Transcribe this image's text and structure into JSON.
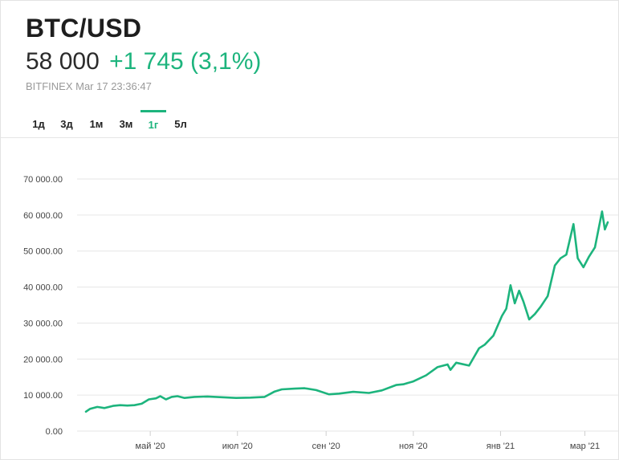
{
  "header": {
    "ticker": "BTC/USD",
    "price": "58 000",
    "change": "+1 745 (3,1%)",
    "source": "BITFINEX Mar 17 23:36:47"
  },
  "tabs": [
    {
      "label": "1д",
      "active": false
    },
    {
      "label": "3д",
      "active": false
    },
    {
      "label": "1м",
      "active": false
    },
    {
      "label": "3м",
      "active": false
    },
    {
      "label": "1г",
      "active": true
    },
    {
      "label": "5л",
      "active": false
    }
  ],
  "colors": {
    "accent": "#1db47d",
    "grid": "#e6e6e6",
    "text": "#222222"
  },
  "chart_data": {
    "type": "line",
    "title": "",
    "xlabel": "",
    "ylabel": "",
    "ylim": [
      0,
      70000
    ],
    "grid": true,
    "yticks": [
      0,
      10000,
      20000,
      30000,
      40000,
      50000,
      60000,
      70000
    ],
    "ytick_labels": [
      "0.00",
      "10 000.00",
      "20 000.00",
      "30 000.00",
      "40 000.00",
      "50 000.00",
      "60 000.00",
      "70 000.00"
    ],
    "xlim": [
      "2020-03-17",
      "2021-03-17"
    ],
    "xticks": [
      {
        "date": "2020-05-01",
        "label": "май '20"
      },
      {
        "date": "2020-07-01",
        "label": "июл '20"
      },
      {
        "date": "2020-09-01",
        "label": "сен '20"
      },
      {
        "date": "2020-11-01",
        "label": "ноя '20"
      },
      {
        "date": "2021-01-01",
        "label": "янв '21"
      },
      {
        "date": "2021-03-01",
        "label": "мар '21"
      }
    ],
    "series": [
      {
        "x": [
          "2020-03-17",
          "2020-03-20",
          "2020-03-25",
          "2020-03-30",
          "2020-04-05",
          "2020-04-10",
          "2020-04-15",
          "2020-04-20",
          "2020-04-25",
          "2020-04-30",
          "2020-05-05",
          "2020-05-08",
          "2020-05-12",
          "2020-05-16",
          "2020-05-20",
          "2020-05-25",
          "2020-06-01",
          "2020-06-10",
          "2020-06-20",
          "2020-06-30",
          "2020-07-10",
          "2020-07-20",
          "2020-07-27",
          "2020-08-01",
          "2020-08-10",
          "2020-08-17",
          "2020-08-25",
          "2020-09-03",
          "2020-09-10",
          "2020-09-20",
          "2020-10-01",
          "2020-10-10",
          "2020-10-20",
          "2020-10-25",
          "2020-11-01",
          "2020-11-10",
          "2020-11-18",
          "2020-11-25",
          "2020-11-27",
          "2020-12-01",
          "2020-12-10",
          "2020-12-17",
          "2020-12-21",
          "2020-12-27",
          "2021-01-02",
          "2021-01-05",
          "2021-01-08",
          "2021-01-11",
          "2021-01-14",
          "2021-01-17",
          "2021-01-21",
          "2021-01-25",
          "2021-01-29",
          "2021-02-03",
          "2021-02-08",
          "2021-02-12",
          "2021-02-16",
          "2021-02-21",
          "2021-02-24",
          "2021-02-28",
          "2021-03-04",
          "2021-03-08",
          "2021-03-13",
          "2021-03-15",
          "2021-03-17"
        ],
        "y": [
          5400,
          6200,
          6700,
          6400,
          7000,
          7200,
          7100,
          7200,
          7600,
          8800,
          9100,
          9700,
          8800,
          9500,
          9700,
          9200,
          9500,
          9600,
          9400,
          9200,
          9300,
          9500,
          11000,
          11600,
          11800,
          11900,
          11400,
          10200,
          10400,
          10900,
          10600,
          11300,
          12800,
          13000,
          13800,
          15500,
          17800,
          18500,
          17000,
          19000,
          18200,
          23000,
          24000,
          26500,
          32000,
          34000,
          40500,
          35500,
          39000,
          36000,
          31000,
          32500,
          34500,
          37500,
          46000,
          48000,
          49000,
          57500,
          48000,
          45500,
          48500,
          51000,
          61000,
          56000,
          58000
        ]
      }
    ]
  }
}
